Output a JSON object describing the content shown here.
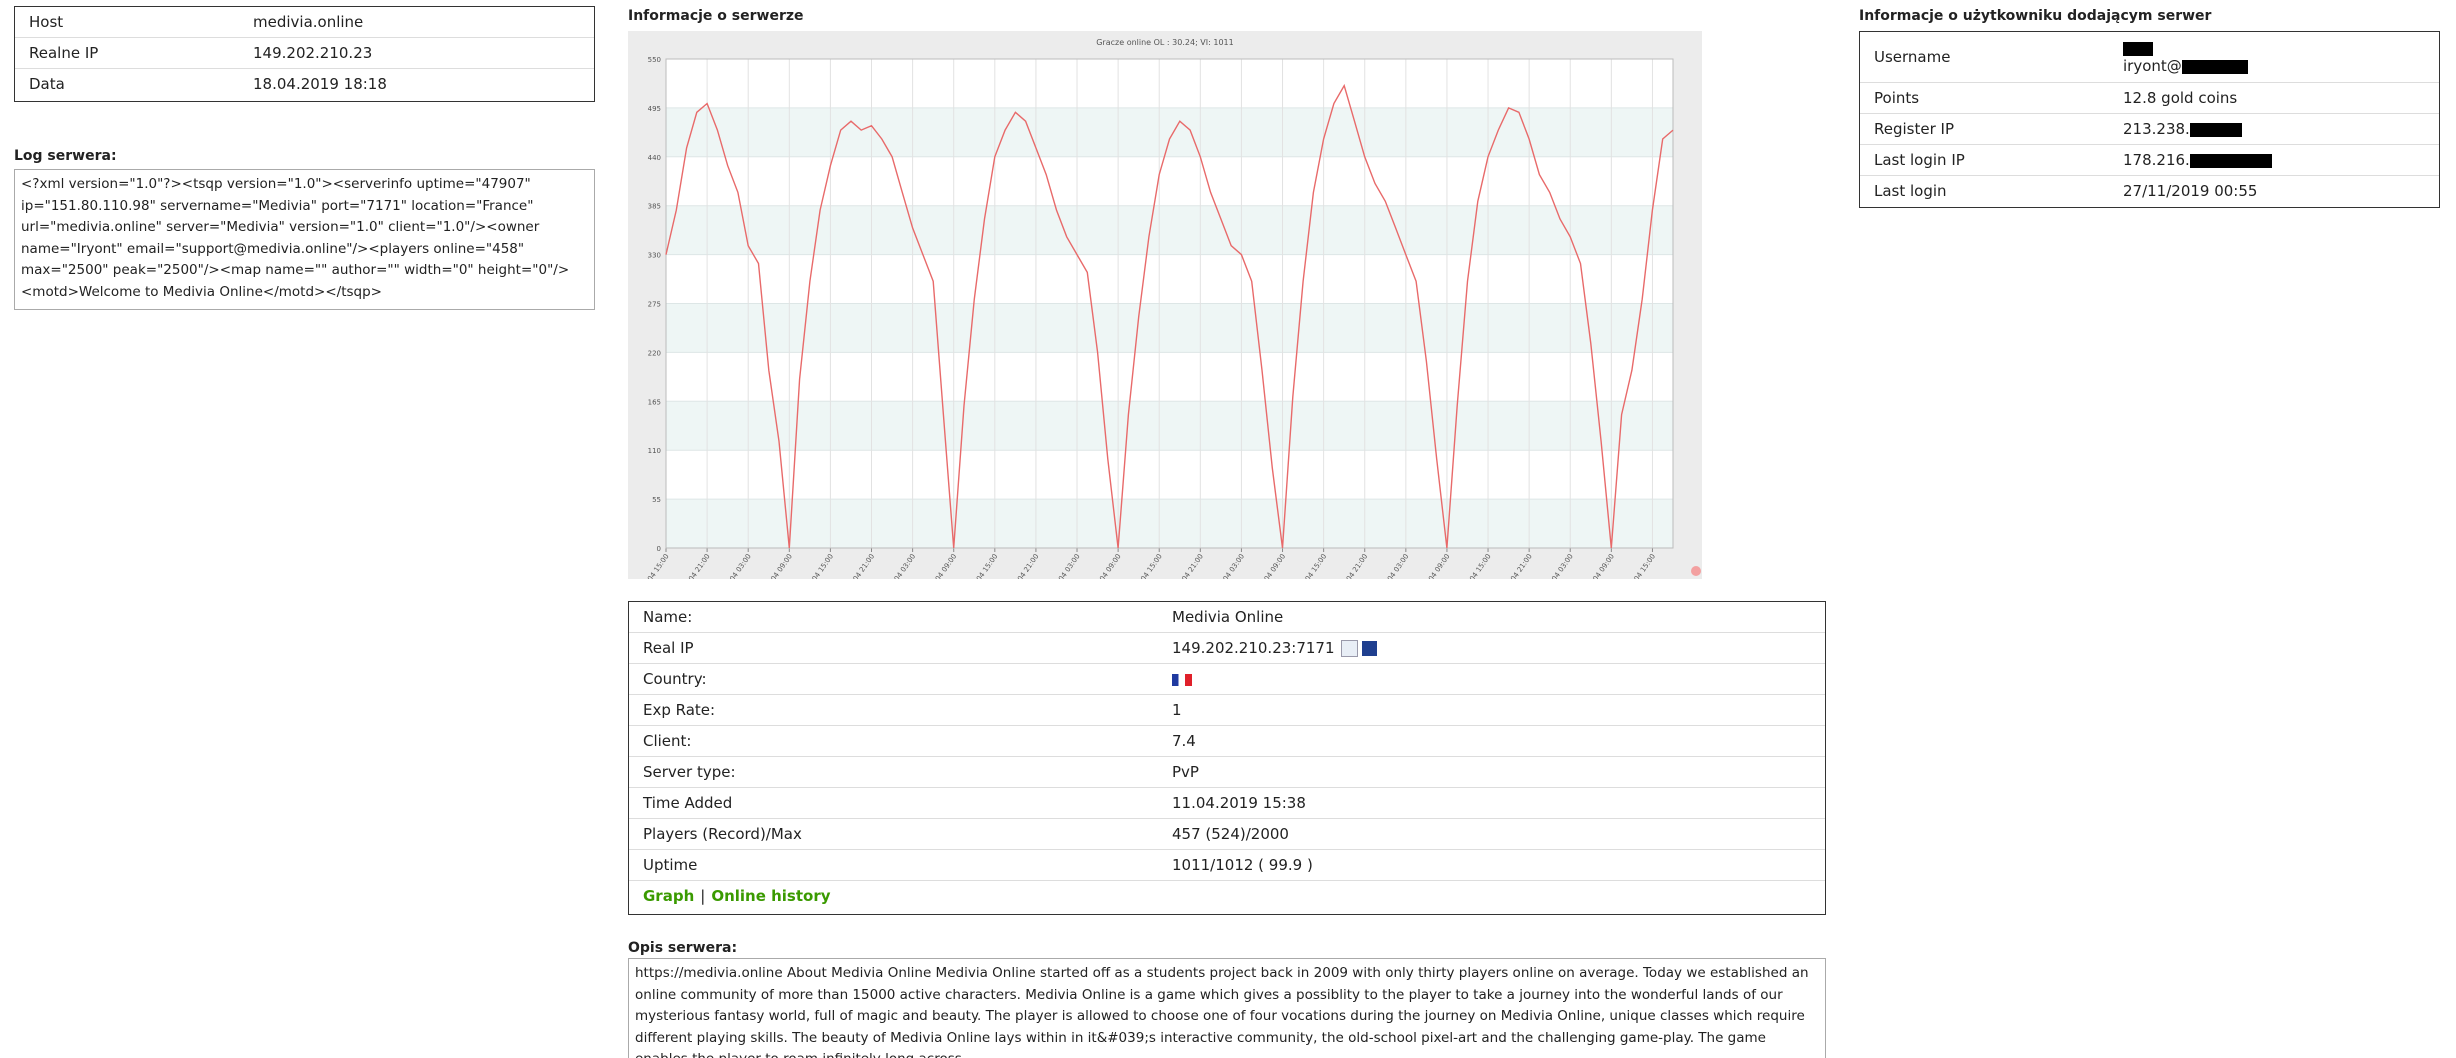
{
  "host_table": {
    "rows": [
      {
        "label": "Host",
        "value": "medivia.online"
      },
      {
        "label": "Realne IP",
        "value": "149.202.210.23"
      },
      {
        "label": "Data",
        "value": "18.04.2019 18:18"
      }
    ]
  },
  "log": {
    "title": "Log serwera:",
    "text": "<?xml version=\"1.0\"?><tsqp version=\"1.0\"><serverinfo uptime=\"47907\" ip=\"151.80.110.98\" servername=\"Medivia\" port=\"7171\" location=\"France\" url=\"medivia.online\" server=\"Medivia\" version=\"1.0\" client=\"1.0\"/><owner name=\"Iryont\" email=\"support@medivia.online\"/><players online=\"458\" max=\"2500\" peak=\"2500\"/><map name=\"\" author=\"\" width=\"0\" height=\"0\"/><motd>Welcome to Medivia Online</motd></tsqp>"
  },
  "server_info": {
    "title": "Informacje o serwerze"
  },
  "chart_data": {
    "type": "line",
    "title": "Gracze online OL : 30.24; VI: 1011",
    "color": "#e86a6a",
    "x": [
      0,
      1,
      2,
      3,
      4,
      5,
      6,
      7,
      8,
      9,
      10,
      11,
      12,
      13,
      14,
      15,
      16,
      17,
      18,
      19,
      20,
      21,
      22,
      23,
      24,
      25,
      26,
      27,
      28,
      29,
      30,
      31,
      32,
      33,
      34,
      35,
      36,
      37,
      38,
      39,
      40,
      41,
      42,
      43,
      44,
      45,
      46,
      47,
      48,
      49,
      50,
      51,
      52,
      53,
      54,
      55,
      56,
      57,
      58,
      59,
      60,
      61,
      62,
      63,
      64,
      65,
      66,
      67,
      68,
      69,
      70,
      71,
      72,
      73,
      74,
      75,
      76,
      77,
      78,
      79,
      80,
      81,
      82,
      83,
      84,
      85,
      86,
      87,
      88,
      89,
      90,
      91,
      92,
      93,
      94,
      95,
      96,
      97,
      98
    ],
    "values": [
      330,
      380,
      450,
      490,
      500,
      470,
      430,
      400,
      340,
      320,
      200,
      120,
      0,
      190,
      300,
      380,
      430,
      470,
      480,
      470,
      475,
      460,
      440,
      400,
      360,
      330,
      300,
      150,
      0,
      160,
      280,
      370,
      440,
      470,
      490,
      480,
      450,
      420,
      380,
      350,
      330,
      310,
      220,
      100,
      0,
      150,
      260,
      350,
      420,
      460,
      480,
      470,
      440,
      400,
      370,
      340,
      330,
      300,
      200,
      90,
      0,
      170,
      300,
      400,
      460,
      500,
      520,
      480,
      440,
      410,
      390,
      360,
      330,
      300,
      210,
      100,
      0,
      160,
      300,
      390,
      440,
      470,
      495,
      490,
      460,
      420,
      400,
      370,
      350,
      320,
      230,
      120,
      0,
      150,
      200,
      280,
      380,
      460,
      470
    ],
    "xlim": [
      0,
      98
    ],
    "xticks": [
      {
        "value": 0,
        "label": "12.04 15:00"
      },
      {
        "value": 4,
        "label": "12.04 21:00"
      },
      {
        "value": 8,
        "label": "13.04 03:00"
      },
      {
        "value": 12,
        "label": "13.04 09:00"
      },
      {
        "value": 16,
        "label": "13.04 15:00"
      },
      {
        "value": 20,
        "label": "13.04 21:00"
      },
      {
        "value": 24,
        "label": "14.04 03:00"
      },
      {
        "value": 28,
        "label": "14.04 09:00"
      },
      {
        "value": 32,
        "label": "14.04 15:00"
      },
      {
        "value": 36,
        "label": "14.04 21:00"
      },
      {
        "value": 40,
        "label": "15.04 03:00"
      },
      {
        "value": 44,
        "label": "15.04 09:00"
      },
      {
        "value": 48,
        "label": "15.04 15:00"
      },
      {
        "value": 52,
        "label": "15.04 21:00"
      },
      {
        "value": 56,
        "label": "16.04 03:00"
      },
      {
        "value": 60,
        "label": "16.04 09:00"
      },
      {
        "value": 64,
        "label": "16.04 15:00"
      },
      {
        "value": 68,
        "label": "16.04 21:00"
      },
      {
        "value": 72,
        "label": "17.04 03:00"
      },
      {
        "value": 76,
        "label": "17.04 09:00"
      },
      {
        "value": 80,
        "label": "17.04 15:00"
      },
      {
        "value": 84,
        "label": "17.04 21:00"
      },
      {
        "value": 88,
        "label": "18.04 03:00"
      },
      {
        "value": 92,
        "label": "18.04 09:00"
      },
      {
        "value": 96,
        "label": "18.04 15:00"
      }
    ],
    "ylim": [
      0,
      550
    ],
    "yticks": [
      0,
      55,
      110,
      165,
      220,
      275,
      330,
      385,
      440,
      495,
      550
    ],
    "grid": true
  },
  "details": {
    "rows": [
      {
        "label": "Name:",
        "value": "Medivia Online"
      },
      {
        "label": "Real IP",
        "value": "149.202.210.23:7171"
      },
      {
        "label": "Country:"
      },
      {
        "label": "Exp Rate:",
        "value": "1"
      },
      {
        "label": "Client:",
        "value": "7.4"
      },
      {
        "label": "Server type:",
        "value": "PvP"
      },
      {
        "label": "Time Added",
        "value": "11.04.2019 15:38"
      },
      {
        "label": "Players (Record)/Max",
        "value": "457 (524)/2000"
      },
      {
        "label": "Uptime",
        "value": "1011/1012 ( 99.9 )"
      }
    ],
    "links": [
      "Graph",
      "Online history"
    ],
    "separator": "|"
  },
  "description": {
    "title": "Opis serwera:",
    "text": "https://medivia.online About Medivia Online Medivia Online started off as a students project back in 2009 with only thirty players online on average. Today we established an online community of more than 15000 active characters. Medivia Online is a game which gives a possiblity to the player to take a journey into the wonderful lands of our mysterious fantasy world, full of magic and beauty. The player is allowed to choose one of four vocations during the journey on Medivia Online, unique classes which require different playing skills. The beauty of Medivia Online lays within in it&#039;s interactive community, the old-school pixel-art and the challenging game-play. The game enables the player to roam infinitely long across"
  },
  "user_info": {
    "title": "Informacje o użytkowniku dodającym serwer",
    "rows": [
      {
        "label": "Username",
        "value": "iryont@"
      },
      {
        "label": "Points",
        "value": "12.8 gold coins"
      },
      {
        "label": "Register IP",
        "value": "213.238."
      },
      {
        "label": "Last login IP",
        "value": "178.216."
      },
      {
        "label": "Last login",
        "value": "27/11/2019 00:55"
      }
    ]
  }
}
